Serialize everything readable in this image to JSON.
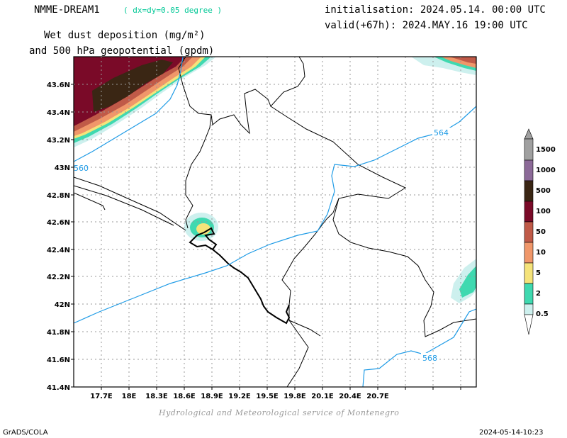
{
  "header": {
    "model": "NMME-DREAM1",
    "resolution": "( dx=dy=0.05 degree )",
    "title_line1": "Wet dust deposition (mg/m²)",
    "title_line2": "and 500 hPa geopotential (gpdm)",
    "init": "initialisation: 2024.05.14. 00:00 UTC",
    "valid": "valid(+67h): 2024.MAY.16 19:00 UTC"
  },
  "map": {
    "lat_ticks": [
      "43.6N",
      "43.4N",
      "43.2N",
      "43N",
      "42.8N",
      "42.6N",
      "42.4N",
      "42.2N",
      "42N",
      "41.8N",
      "41.6N",
      "41.4N"
    ],
    "lon_ticks": [
      "17.7E",
      "18E",
      "18.3E",
      "18.6E",
      "18.9E",
      "19.2E",
      "19.5E",
      "19.8E",
      "20.1E",
      "20.4E",
      "20.7E"
    ],
    "contour_labels": [
      "560",
      "564",
      "568"
    ],
    "contour_color": "#1e9be6"
  },
  "legend": {
    "levels": [
      "0.5",
      "2",
      "5",
      "10",
      "50",
      "100",
      "500",
      "1000",
      "1500"
    ],
    "colors": [
      "#cdf0ee",
      "#3fd9b0",
      "#f5e37a",
      "#f0976a",
      "#c05a48",
      "#7a0a28",
      "#3a2614",
      "#8c6a98",
      "#a0a0a0"
    ]
  },
  "footer": {
    "credit": "Hydrological and Meteorological service of Montenegro",
    "software": "GrADS/COLA",
    "timestamp": "2024-05-14-10:23"
  }
}
